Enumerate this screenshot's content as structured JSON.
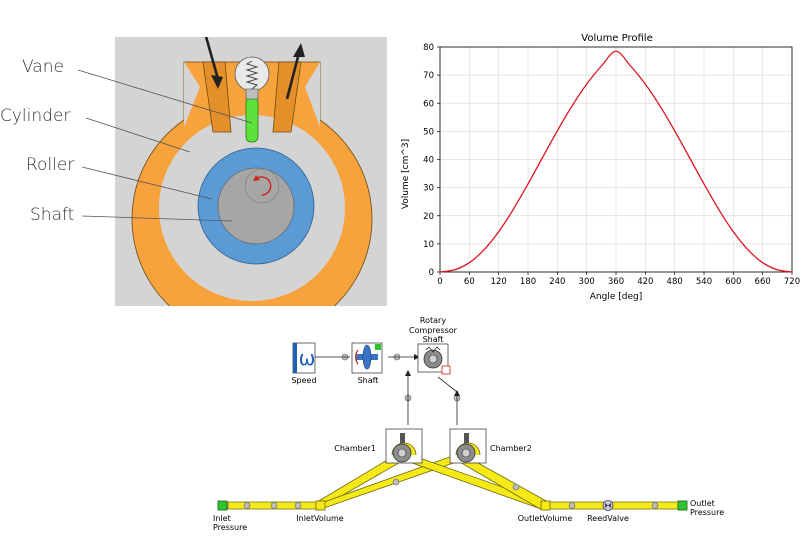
{
  "compressor": {
    "labels": {
      "vane": "Vane",
      "cylinder": "Cylinder",
      "roller": "Roller",
      "shaft": "Shaft"
    },
    "colors": {
      "background": "#d4d4d4",
      "cylinder": "#f7a23c",
      "roller": "#5b9bd5",
      "shaft": "#a6a6a6",
      "vane": "#5de23c"
    }
  },
  "chart_data": {
    "type": "line",
    "title": "Volume Profile",
    "xlabel": "Angle [deg]",
    "ylabel": "Volume [cm^3]",
    "xlim": [
      0,
      720
    ],
    "ylim": [
      0,
      80
    ],
    "xticks": [
      0,
      60,
      120,
      180,
      240,
      300,
      360,
      420,
      480,
      540,
      600,
      660,
      720
    ],
    "yticks": [
      0,
      10,
      20,
      30,
      40,
      50,
      60,
      70,
      80
    ],
    "grid": true,
    "series": [
      {
        "color": "#e0141e",
        "x": [
          0,
          30,
          60,
          90,
          120,
          150,
          180,
          210,
          240,
          270,
          300,
          330,
          360,
          390,
          420,
          450,
          480,
          510,
          540,
          570,
          600,
          630,
          660,
          690,
          720
        ],
        "y": [
          0,
          0.8,
          3.3,
          7.9,
          14.3,
          22.3,
          31.3,
          40.8,
          50.2,
          59.0,
          66.8,
          73.2,
          78.5,
          73.2,
          66.8,
          59.0,
          50.2,
          40.8,
          31.3,
          22.3,
          14.3,
          7.9,
          3.3,
          0.8,
          0
        ]
      }
    ]
  },
  "schematic": {
    "blocks": {
      "speed": "Speed",
      "shaft": "Shaft",
      "rotary_title_1": "Rotary",
      "rotary_title_2": "Compressor",
      "rotary_title_3": "Shaft",
      "chamber1": "Chamber1",
      "chamber2": "Chamber2",
      "inlet_pressure_1": "Inlet",
      "inlet_pressure_2": "Pressure",
      "inlet_volume": "InletVolume",
      "outlet_volume": "OutletVolume",
      "reed_valve": "ReedValve",
      "outlet_pressure_1": "Outlet",
      "outlet_pressure_2": "Pressure"
    },
    "speed_symbol": "ω",
    "colors": {
      "pipe": "#f5ea18",
      "pipe_edge": "#6f6a10",
      "boundary": "#2ec62e"
    }
  }
}
